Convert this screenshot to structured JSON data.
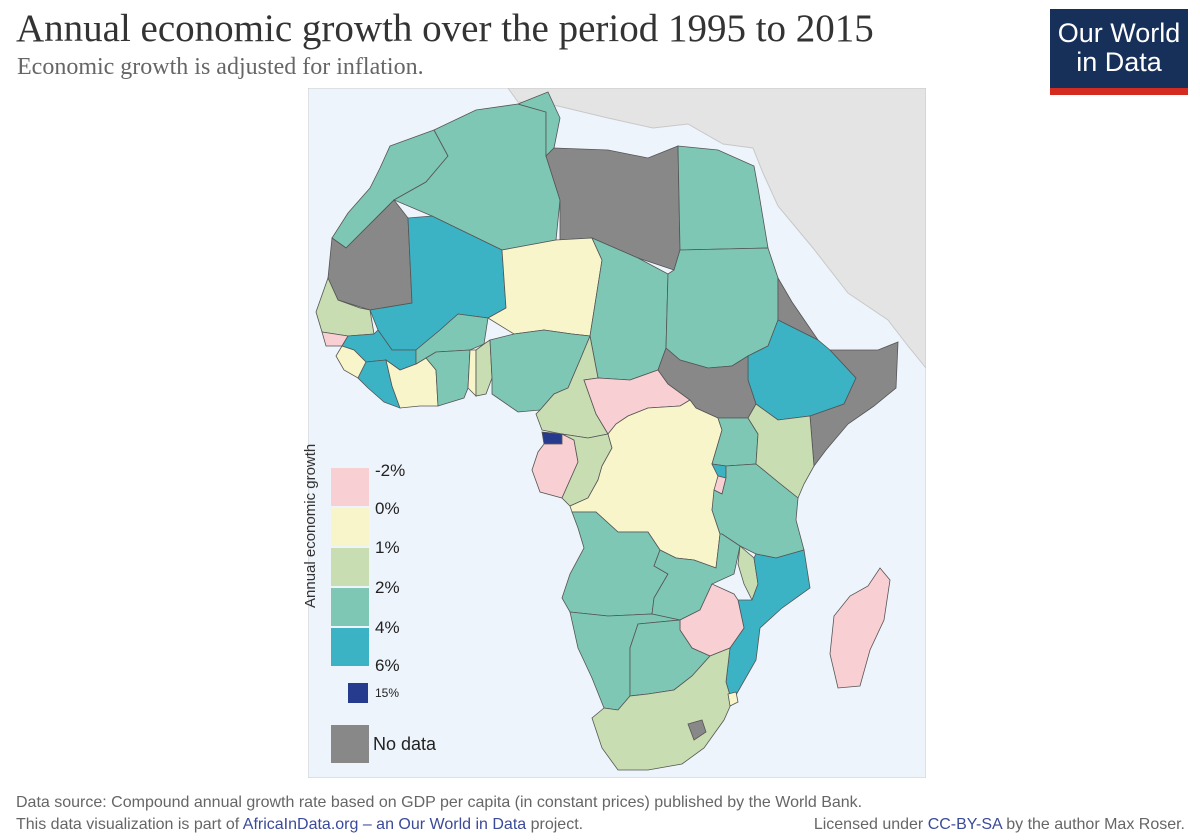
{
  "header": {
    "title": "Annual economic growth over the period 1995 to 2015",
    "subtitle": "Economic growth is adjusted for inflation."
  },
  "logo": {
    "line1": "Our World",
    "line2": "in Data"
  },
  "legend": {
    "title": "Annual economic growth",
    "ticks": [
      "-2%",
      "0%",
      "1%",
      "2%",
      "4%",
      "6%"
    ],
    "top_tick": "15%",
    "no_data_label": "No data",
    "bins": [
      {
        "from": "-2%",
        "to": "0%",
        "color": "#f8cfd2"
      },
      {
        "from": "0%",
        "to": "1%",
        "color": "#f8f5cb"
      },
      {
        "from": "1%",
        "to": "2%",
        "color": "#c8ddb1"
      },
      {
        "from": "2%",
        "to": "4%",
        "color": "#7ec7b4"
      },
      {
        "from": "4%",
        "to": "6%",
        "color": "#3bb3c4"
      },
      {
        "from": "6%",
        "to": "15%",
        "color": "#263b8e"
      }
    ],
    "no_data_color": "#888888"
  },
  "colors": {
    "ocean": "#eef4fb",
    "non_african_land": "#e4e4e4",
    "border": "#555555"
  },
  "map": {
    "regions": [
      {
        "name": "Morocco",
        "bin": "2% to 4%"
      },
      {
        "name": "Algeria",
        "bin": "2% to 4%"
      },
      {
        "name": "Tunisia",
        "bin": "2% to 4%"
      },
      {
        "name": "Libya",
        "bin": "No data"
      },
      {
        "name": "Egypt",
        "bin": "2% to 4%"
      },
      {
        "name": "Mauritania",
        "bin": "No data"
      },
      {
        "name": "Mali",
        "bin": "4% to 6%"
      },
      {
        "name": "Niger",
        "bin": "0% to 1%"
      },
      {
        "name": "Chad",
        "bin": "2% to 4%"
      },
      {
        "name": "Sudan",
        "bin": "2% to 4%"
      },
      {
        "name": "Eritrea",
        "bin": "No data"
      },
      {
        "name": "Ethiopia",
        "bin": "4% to 6%"
      },
      {
        "name": "Somalia",
        "bin": "No data"
      },
      {
        "name": "Senegal",
        "bin": "1% to 2%"
      },
      {
        "name": "Guinea-Bissau",
        "bin": "-2% to 0%"
      },
      {
        "name": "Guinea",
        "bin": "4% to 6%"
      },
      {
        "name": "Sierra Leone",
        "bin": "0% to 1%"
      },
      {
        "name": "Liberia",
        "bin": "4% to 6%"
      },
      {
        "name": "Cote d'Ivoire",
        "bin": "0% to 1%"
      },
      {
        "name": "Burkina Faso",
        "bin": "2% to 4%"
      },
      {
        "name": "Ghana",
        "bin": "2% to 4%"
      },
      {
        "name": "Togo",
        "bin": "0% to 1%"
      },
      {
        "name": "Benin",
        "bin": "1% to 2%"
      },
      {
        "name": "Nigeria",
        "bin": "2% to 4%"
      },
      {
        "name": "Cameroon",
        "bin": "1% to 2%"
      },
      {
        "name": "Central African Republic",
        "bin": "-2% to 0%"
      },
      {
        "name": "South Sudan",
        "bin": "No data"
      },
      {
        "name": "Equatorial Guinea",
        "bin": "6% to 15%"
      },
      {
        "name": "Gabon",
        "bin": "-2% to 0%"
      },
      {
        "name": "Republic of the Congo",
        "bin": "1% to 2%"
      },
      {
        "name": "Democratic Republic of the Congo",
        "bin": "0% to 1%"
      },
      {
        "name": "Uganda",
        "bin": "2% to 4%"
      },
      {
        "name": "Kenya",
        "bin": "1% to 2%"
      },
      {
        "name": "Rwanda",
        "bin": "4% to 6%"
      },
      {
        "name": "Burundi",
        "bin": "-2% to 0%"
      },
      {
        "name": "Tanzania",
        "bin": "2% to 4%"
      },
      {
        "name": "Angola",
        "bin": "2% to 4%"
      },
      {
        "name": "Zambia",
        "bin": "2% to 4%"
      },
      {
        "name": "Malawi",
        "bin": "1% to 2%"
      },
      {
        "name": "Mozambique",
        "bin": "4% to 6%"
      },
      {
        "name": "Zimbabwe",
        "bin": "-2% to 0%"
      },
      {
        "name": "Namibia",
        "bin": "2% to 4%"
      },
      {
        "name": "Botswana",
        "bin": "2% to 4%"
      },
      {
        "name": "South Africa",
        "bin": "1% to 2%"
      },
      {
        "name": "Lesotho",
        "bin": "No data"
      },
      {
        "name": "Swaziland",
        "bin": "0% to 1%"
      },
      {
        "name": "Madagascar",
        "bin": "-2% to 0%"
      }
    ]
  },
  "footer": {
    "source": "Data source: Compound annual growth rate based on GDP per capita (in constant prices) published by the World Bank.",
    "project_prefix": "This data visualization is part of ",
    "project_link": "AfricaInData.org – an Our World in Data",
    "project_suffix": " project.",
    "license_prefix": "Licensed under ",
    "license_link": "CC-BY-SA",
    "license_suffix": " by the author Max Roser."
  }
}
